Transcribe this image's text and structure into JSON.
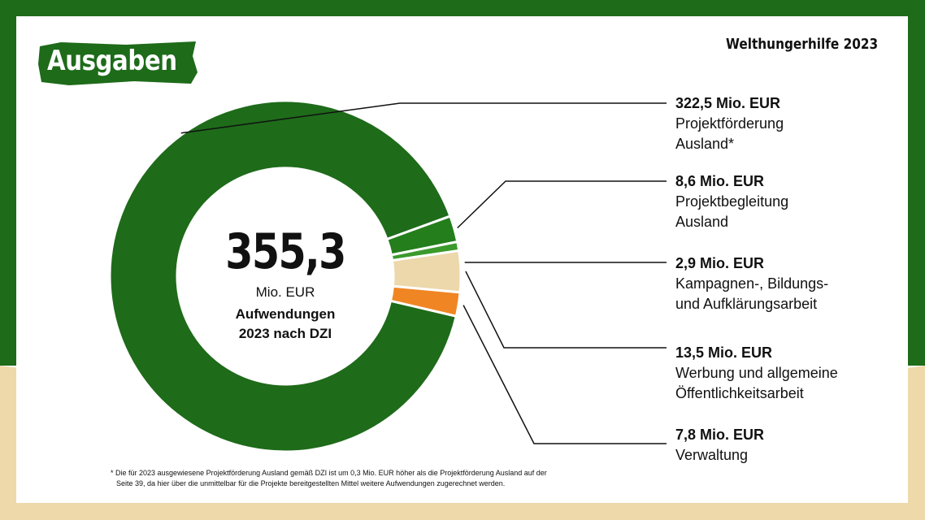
{
  "header": {
    "title": "Ausgaben",
    "org_year": "Welthungerhilfe 2023"
  },
  "center": {
    "total": "355,3",
    "unit": "Mio. EUR",
    "description_line1": "Aufwendungen",
    "description_line2": "2023 nach DZI"
  },
  "colors": {
    "background_green": "#1e6b1a",
    "background_sand": "#edd9a9",
    "title_badge": "#1e6b1a"
  },
  "chart_data": {
    "type": "pie",
    "variant": "donut",
    "unit": "Mio. EUR",
    "total": 355.3,
    "slices": [
      {
        "value_label": "322,5 Mio. EUR",
        "value": 322.5,
        "name_line1": "Projektförderung",
        "name_line2": "Ausland*",
        "color": "#1e6b1a"
      },
      {
        "value_label": "8,6 Mio. EUR",
        "value": 8.6,
        "name_line1": "Projektbegleitung",
        "name_line2": "Ausland",
        "color": "#247e1c"
      },
      {
        "value_label": "2,9 Mio. EUR",
        "value": 2.9,
        "name_line1": "Kampagnen-, Bildungs-",
        "name_line2": "und Aufklärungsarbeit",
        "color": "#3b9a2c"
      },
      {
        "value_label": "13,5 Mio. EUR",
        "value": 13.5,
        "name_line1": "Werbung und allgemeine",
        "name_line2": "Öffentlichkeitsarbeit",
        "color": "#ecd8ab"
      },
      {
        "value_label": "7,8 Mio. EUR",
        "value": 7.8,
        "name_line1": "Verwaltung",
        "name_line2": "",
        "color": "#f08523"
      }
    ]
  },
  "footnote": {
    "line1": "Die für 2023 ausgewiesene Projektförderung Ausland gemäß DZI ist um 0,3 Mio. EUR höher als die Projektförderung Ausland auf der",
    "line2": "Seite 39, da hier über die unmittelbar für die Projekte bereitgestellten Mittel weitere Aufwendungen zugerechnet werden."
  }
}
